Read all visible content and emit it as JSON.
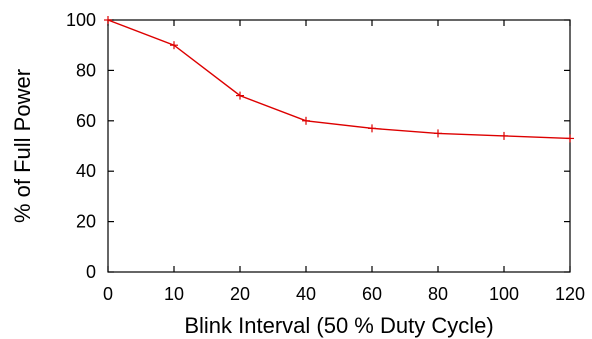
{
  "chart_data": {
    "type": "line",
    "categories": [
      "0",
      "10",
      "20",
      "40",
      "60",
      "80",
      "100",
      "120"
    ],
    "series": [
      {
        "values": [
          100,
          90,
          70,
          60,
          57,
          55,
          54,
          53
        ],
        "color": "#dd0000"
      }
    ],
    "xlabel": "Blink Interval (50 % Duty Cycle)",
    "ylabel": "% of Full Power",
    "ylim": [
      0,
      100
    ],
    "y_ticks": [
      0,
      20,
      40,
      60,
      80,
      100
    ],
    "grid": false,
    "legend": false
  }
}
